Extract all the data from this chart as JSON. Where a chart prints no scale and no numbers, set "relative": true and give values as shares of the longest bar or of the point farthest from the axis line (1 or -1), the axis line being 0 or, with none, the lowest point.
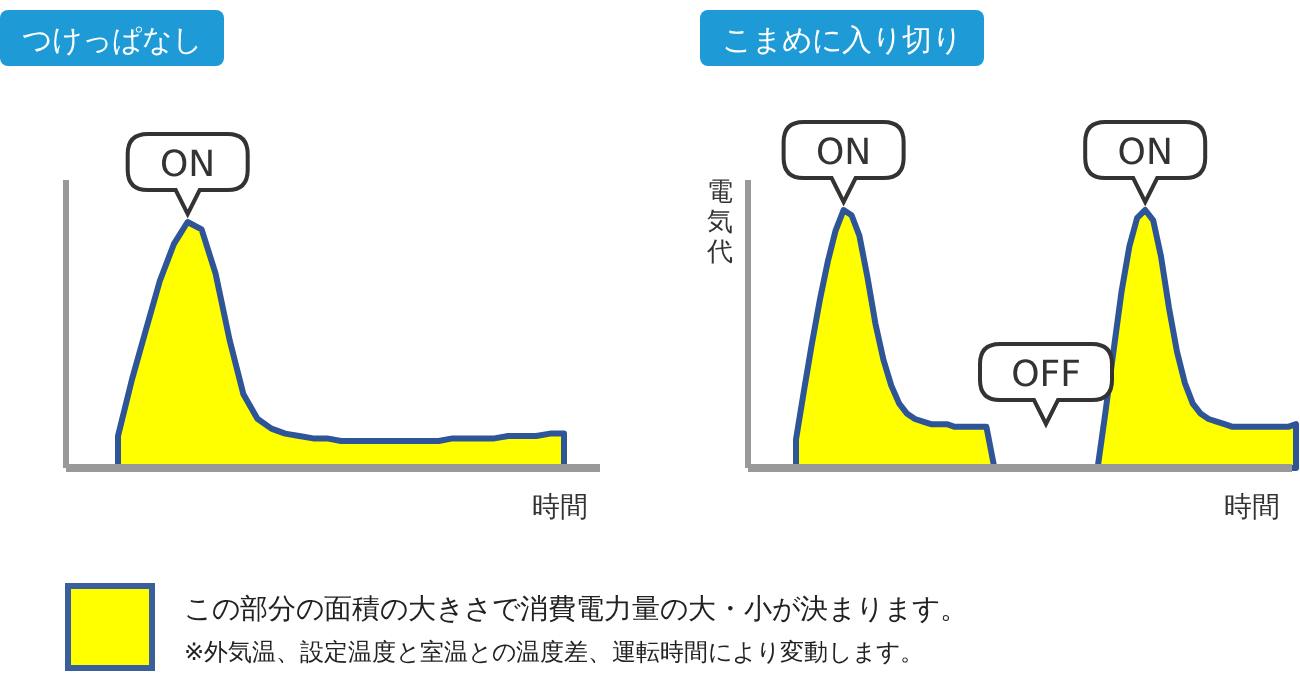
{
  "chart_data": [
    {
      "type": "area",
      "title": "つけっぱなし",
      "xlabel": "時間",
      "relative": true,
      "annotations": [
        "ON"
      ],
      "categories": [
        null,
        null,
        null,
        null,
        null,
        null,
        null,
        null,
        null,
        null,
        null,
        null,
        null,
        null,
        null,
        null,
        null,
        null,
        null,
        null,
        null,
        null,
        null,
        null,
        null,
        null,
        null,
        null,
        null,
        null,
        null,
        null,
        null
      ],
      "series": [
        {
          "color": "#ffff00",
          "values": [
            0.13,
            0.36,
            0.56,
            0.76,
            0.91,
            1.0,
            0.97,
            0.79,
            0.52,
            0.3,
            0.2,
            0.16,
            0.14,
            0.13,
            0.12,
            0.12,
            0.11,
            0.11,
            0.11,
            0.11,
            0.11,
            0.11,
            0.11,
            0.11,
            0.12,
            0.12,
            0.12,
            0.12,
            0.13,
            0.13,
            0.13,
            0.14,
            0.14
          ]
        }
      ]
    },
    {
      "type": "area",
      "title": "こまめに入り切り",
      "xlabel": "時間",
      "ylabel": "電気代",
      "relative": true,
      "annotations": [
        "ON",
        "OFF",
        "ON"
      ],
      "categories": [
        null,
        null,
        null,
        null,
        null,
        null,
        null,
        null,
        null,
        null,
        null,
        null,
        null,
        null,
        null,
        null,
        null,
        null,
        null,
        null,
        null,
        null,
        null,
        null,
        null,
        null,
        null,
        null,
        null,
        null,
        null,
        null,
        null,
        null,
        null,
        null,
        null,
        null,
        null,
        null,
        null,
        null,
        null,
        null,
        null,
        null,
        null,
        null,
        null,
        null,
        null,
        null,
        null,
        null,
        null,
        null,
        null,
        null,
        null,
        null,
        null,
        null,
        null,
        null
      ],
      "series": [
        {
          "color": "#ffff00",
          "values": [
            0.11,
            0.3,
            0.48,
            0.65,
            0.8,
            0.92,
            1.0,
            0.98,
            0.9,
            0.74,
            0.56,
            0.42,
            0.32,
            0.25,
            0.21,
            0.19,
            0.18,
            0.17,
            0.17,
            0.17,
            0.16,
            0.16,
            0.16,
            0.16,
            0.16,
            0,
            0,
            0,
            0,
            0,
            0,
            0,
            0,
            0,
            0,
            0,
            0,
            0,
            0,
            0.22,
            0.45,
            0.68,
            0.86,
            0.97,
            1.0,
            0.96,
            0.82,
            0.62,
            0.45,
            0.33,
            0.25,
            0.21,
            0.19,
            0.18,
            0.17,
            0.16,
            0.16,
            0.16,
            0.16,
            0.16,
            0.16,
            0.16,
            0.16,
            0.17
          ]
        }
      ]
    },
    {
      "type": "other",
      "color": "#ffff00",
      "annotations": [
        "この部分の面積の大きさで消費電力量の大・小が決まります。",
        "※外気温、設定温度と室温との温度差、運転時間により変動します。"
      ]
    }
  ]
}
